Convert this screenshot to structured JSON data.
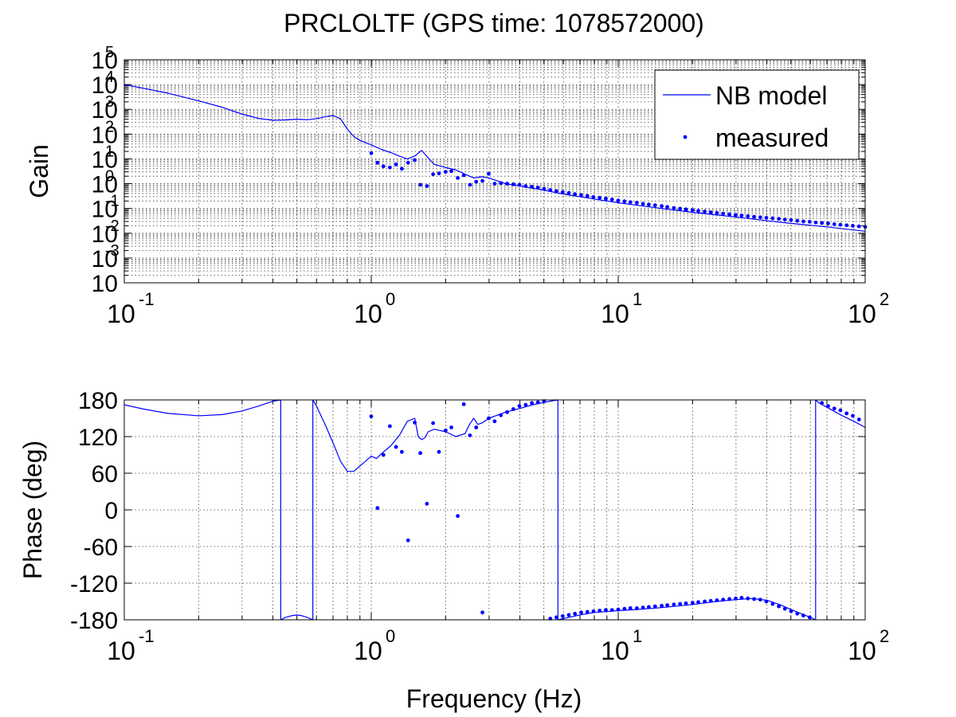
{
  "colors": {
    "model_line": "#0000ff",
    "measured_marker": "#0000ff",
    "axes": "#000000",
    "background": "#ffffff"
  },
  "chart_data": [
    {
      "id": "gain",
      "type": "line",
      "title": "PRCLOLTF (GPS time: 1078572000)",
      "xlabel": "",
      "ylabel": "Gain",
      "xscale": "log",
      "yscale": "log",
      "xlim": [
        0.1,
        100
      ],
      "ylim": [
        0.0001,
        100000
      ],
      "grid": true,
      "legend": {
        "placement": "top-right",
        "entries": [
          "NB model",
          "measured"
        ]
      },
      "x_ticks": [
        {
          "base": "10",
          "exp": "-1",
          "value": 0.1
        },
        {
          "base": "10",
          "exp": "0",
          "value": 1
        },
        {
          "base": "10",
          "exp": "1",
          "value": 10
        },
        {
          "base": "10",
          "exp": "2",
          "value": 100
        }
      ],
      "y_ticks": [
        {
          "base": "10",
          "exp": "5",
          "value": 100000
        },
        {
          "base": "10",
          "exp": "4",
          "value": 10000
        },
        {
          "base": "10",
          "exp": "3",
          "value": 1000
        },
        {
          "base": "10",
          "exp": "2",
          "value": 100
        },
        {
          "base": "10",
          "exp": "1",
          "value": 10
        },
        {
          "base": "10",
          "exp": "0",
          "value": 1
        },
        {
          "base": "10",
          "exp": "-1",
          "value": 0.1
        },
        {
          "base": "10",
          "exp": "-2",
          "value": 0.01
        },
        {
          "base": "10",
          "exp": "-3",
          "value": 0.001
        },
        {
          "base": "10",
          "exp": "",
          "value": 0.0001
        }
      ],
      "series": [
        {
          "name": "NB model",
          "style": "line",
          "x": [
            0.1,
            0.12,
            0.15,
            0.2,
            0.25,
            0.3,
            0.35,
            0.4,
            0.45,
            0.5,
            0.55,
            0.6,
            0.65,
            0.7,
            0.75,
            0.8,
            0.85,
            0.9,
            0.95,
            1.0,
            1.1,
            1.2,
            1.3,
            1.4,
            1.5,
            1.6,
            1.7,
            1.8,
            2.0,
            2.2,
            2.4,
            2.6,
            2.8,
            3.0,
            3.5,
            4,
            5,
            6,
            8,
            10,
            15,
            20,
            30,
            40,
            50,
            70,
            100
          ],
          "y": [
            10000,
            7000,
            4500,
            2200,
            1200,
            640,
            430,
            360,
            370,
            400,
            380,
            420,
            500,
            560,
            420,
            160,
            80,
            55,
            45,
            37,
            24,
            18,
            13,
            10,
            13,
            22,
            11,
            6,
            4.5,
            3.6,
            2.4,
            1.7,
            1.9,
            1.7,
            1.0,
            0.8,
            0.55,
            0.38,
            0.24,
            0.17,
            0.1,
            0.07,
            0.045,
            0.032,
            0.025,
            0.018,
            0.012
          ]
        },
        {
          "name": "measured",
          "style": "markers",
          "x": [
            1.0,
            1.06,
            1.12,
            1.19,
            1.26,
            1.33,
            1.41,
            1.5,
            1.58,
            1.68,
            1.78,
            1.88,
            2.0,
            2.11,
            2.24,
            2.37,
            2.51,
            2.66,
            2.82,
            2.99,
            3.16,
            3.35,
            3.55,
            3.76,
            3.98,
            4.22,
            4.47,
            4.73,
            5.01,
            5.31,
            5.62,
            5.96,
            6.31,
            6.68,
            7.08,
            7.5,
            7.94,
            8.41,
            8.91,
            9.44,
            10.0,
            10.6,
            11.2,
            11.9,
            12.6,
            13.3,
            14.1,
            15.0,
            15.8,
            16.8,
            17.8,
            18.8,
            20.0,
            21.1,
            22.4,
            23.7,
            25.1,
            26.6,
            28.2,
            29.9,
            31.6,
            33.5,
            35.5,
            37.6,
            39.8,
            42.2,
            44.7,
            47.3,
            50.1,
            53.1,
            56.2,
            59.6,
            63.1,
            66.8,
            70.8,
            75.0,
            79.4,
            84.1,
            89.1,
            94.4,
            100.0
          ],
          "y": [
            17,
            7,
            5,
            4.5,
            6,
            4,
            7,
            9,
            0.9,
            0.8,
            2.4,
            2.6,
            3,
            3.2,
            1.7,
            2.2,
            0.9,
            1.2,
            1.3,
            2.5,
            1.0,
            1.05,
            1.0,
            0.95,
            0.9,
            0.8,
            0.75,
            0.7,
            0.62,
            0.55,
            0.5,
            0.46,
            0.42,
            0.38,
            0.35,
            0.32,
            0.29,
            0.27,
            0.25,
            0.23,
            0.21,
            0.195,
            0.18,
            0.17,
            0.155,
            0.145,
            0.135,
            0.125,
            0.115,
            0.105,
            0.098,
            0.092,
            0.086,
            0.08,
            0.075,
            0.07,
            0.066,
            0.062,
            0.058,
            0.055,
            0.052,
            0.049,
            0.046,
            0.044,
            0.042,
            0.04,
            0.038,
            0.036,
            0.034,
            0.032,
            0.03,
            0.029,
            0.027,
            0.026,
            0.025,
            0.023,
            0.022,
            0.021,
            0.02,
            0.019,
            0.018
          ]
        }
      ]
    },
    {
      "id": "phase",
      "type": "line",
      "title": "",
      "xlabel": "Frequency (Hz)",
      "ylabel": "Phase (deg)",
      "xscale": "log",
      "yscale": "linear",
      "xlim": [
        0.1,
        100
      ],
      "ylim": [
        -180,
        180
      ],
      "grid": true,
      "x_ticks": [
        {
          "base": "10",
          "exp": "-1",
          "value": 0.1
        },
        {
          "base": "10",
          "exp": "0",
          "value": 1
        },
        {
          "base": "10",
          "exp": "1",
          "value": 10
        },
        {
          "base": "10",
          "exp": "2",
          "value": 100
        }
      ],
      "y_ticks": [
        {
          "label": "180",
          "value": 180
        },
        {
          "label": "120",
          "value": 120
        },
        {
          "label": "60",
          "value": 60
        },
        {
          "label": "0",
          "value": 0
        },
        {
          "label": "-60",
          "value": -60
        },
        {
          "label": "-120",
          "value": -120
        },
        {
          "label": "-180",
          "value": -180
        }
      ],
      "series": [
        {
          "name": "NB model",
          "style": "line",
          "segments": [
            {
              "x": [
                0.1,
                0.12,
                0.15,
                0.2,
                0.25,
                0.3,
                0.35,
                0.4,
                0.43
              ],
              "y": [
                172,
                165,
                158,
                154,
                156,
                162,
                170,
                178,
                180
              ]
            },
            {
              "x": [
                0.43,
                0.45,
                0.48,
                0.5,
                0.52,
                0.55,
                0.58
              ],
              "y": [
                -180,
                -176,
                -173,
                -172,
                -173,
                -176,
                -180
              ]
            },
            {
              "x": [
                0.58,
                0.6,
                0.65,
                0.7,
                0.75,
                0.8,
                0.85,
                0.9,
                0.95,
                1.0,
                1.05,
                1.1,
                1.2,
                1.3,
                1.4,
                1.5,
                1.55,
                1.6,
                1.65,
                1.7,
                1.8,
                2.0,
                2.2,
                2.4,
                2.5,
                2.6,
                2.7,
                2.8,
                3.0,
                3.5,
                4,
                4.5,
                5.0,
                5.5,
                5.7
              ],
              "y": [
                180,
                170,
                140,
                110,
                80,
                63,
                63,
                72,
                80,
                88,
                84,
                92,
                105,
                122,
                145,
                150,
                120,
                115,
                118,
                128,
                132,
                128,
                120,
                125,
                140,
                150,
                140,
                142,
                150,
                160,
                166,
                172,
                176,
                179,
                180
              ]
            },
            {
              "x": [
                5.7,
                6,
                7,
                8,
                10,
                12,
                15,
                20,
                25,
                30,
                35,
                40,
                45,
                50,
                55,
                60,
                63
              ],
              "y": [
                -180,
                -178,
                -172,
                -168,
                -165,
                -163,
                -160,
                -155,
                -150,
                -147,
                -145,
                -148,
                -155,
                -163,
                -170,
                -176,
                -180
              ]
            },
            {
              "x": [
                63,
                65,
                70,
                80,
                90,
                100
              ],
              "y": [
                180,
                175,
                168,
                155,
                145,
                135
              ]
            }
          ]
        },
        {
          "name": "measured",
          "style": "markers",
          "x": [
            1.0,
            1.06,
            1.12,
            1.19,
            1.26,
            1.33,
            1.41,
            1.5,
            1.58,
            1.68,
            1.78,
            1.88,
            2.0,
            2.11,
            2.24,
            2.37,
            2.51,
            2.66,
            2.82,
            2.99,
            3.16,
            3.35,
            3.55,
            3.76,
            3.98,
            4.22,
            4.47,
            4.73,
            5.01,
            5.31,
            5.62,
            5.96,
            6.31,
            6.68,
            7.08,
            7.5,
            7.94,
            8.41,
            8.91,
            9.44,
            10.0,
            10.6,
            11.2,
            11.9,
            12.6,
            13.3,
            14.1,
            15.0,
            15.8,
            16.8,
            17.8,
            18.8,
            20.0,
            21.1,
            22.4,
            23.7,
            25.1,
            26.6,
            28.2,
            29.9,
            31.6,
            33.5,
            35.5,
            37.6,
            39.8,
            42.2,
            44.7,
            47.3,
            50.1,
            53.1,
            56.2,
            59.6,
            66.8,
            70.8,
            75.0,
            79.4,
            84.1,
            89.1,
            94.4
          ],
          "y": [
            153,
            3,
            90,
            137,
            103,
            95,
            -50,
            143,
            93,
            10,
            142,
            95,
            130,
            135,
            -10,
            173,
            122,
            135,
            -168,
            150,
            145,
            155,
            160,
            165,
            170,
            172,
            175,
            176,
            178,
            -178,
            -176,
            -174,
            -172,
            -170,
            -168,
            -167,
            -166,
            -165,
            -164,
            -164,
            -163,
            -162,
            -161,
            -161,
            -160,
            -159,
            -158,
            -157,
            -156,
            -155,
            -154,
            -153,
            -152,
            -151,
            -150,
            -149,
            -148,
            -147,
            -146,
            -145,
            -144,
            -145,
            -146,
            -147,
            -150,
            -154,
            -158,
            -162,
            -166,
            -170,
            -173,
            -176,
            175,
            170,
            166,
            163,
            158,
            154,
            148
          ]
        }
      ]
    }
  ]
}
